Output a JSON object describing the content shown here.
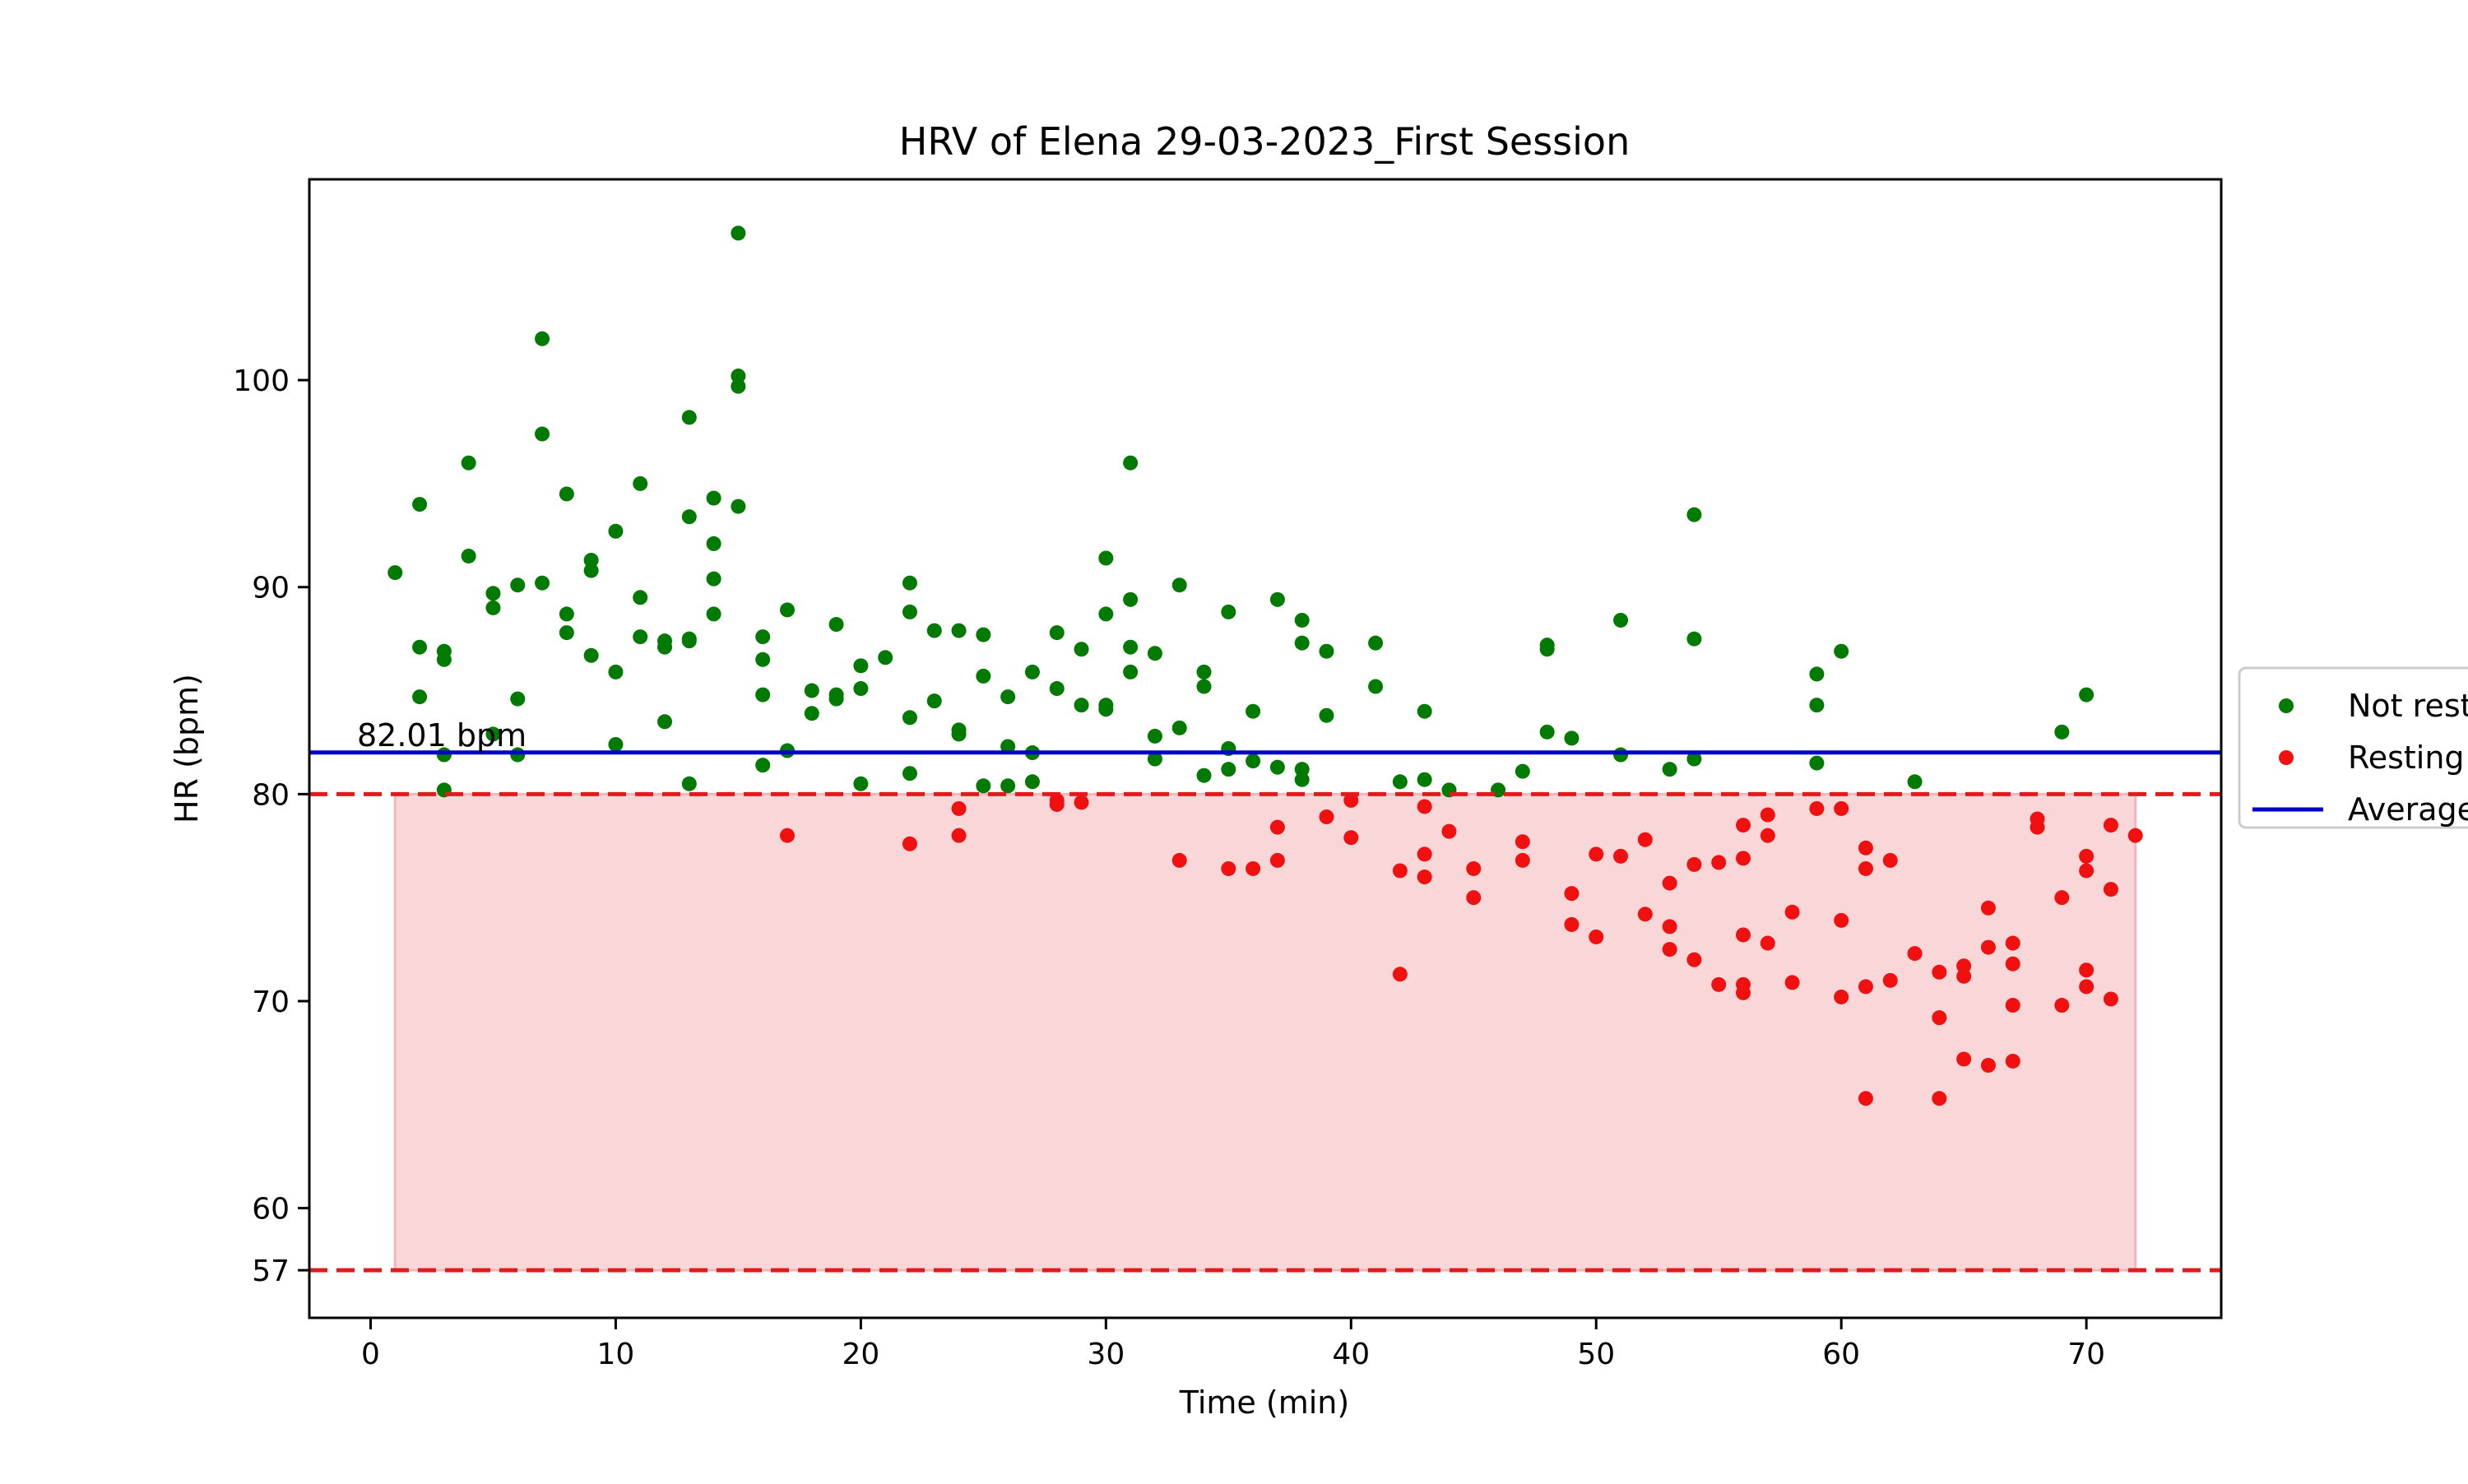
{
  "chart_data": {
    "type": "scatter",
    "title": "HRV of Elena 29-03-2023_First Session",
    "xlabel": "Time (min)",
    "ylabel": "HR (bpm)",
    "xlim": [
      -2.5,
      75.5
    ],
    "ylim": [
      54.7,
      109.7
    ],
    "x_ticks": [
      0,
      10,
      20,
      30,
      40,
      50,
      60,
      70
    ],
    "y_ticks": [
      57,
      60,
      70,
      80,
      90,
      100
    ],
    "grid": false,
    "legend_position": "right",
    "average": {
      "value": 82.01,
      "label": "82.01 bpm",
      "color": "#0000cc"
    },
    "thresholds": [
      {
        "value": 80,
        "color": "#e31a1c"
      },
      {
        "value": 57,
        "color": "#e31a1c"
      }
    ],
    "resting_band": {
      "x_start": 1,
      "x_end": 72,
      "y_low": 57,
      "y_high": 80,
      "color": "#f4b6b8"
    },
    "series": [
      {
        "name": "Not resting",
        "color": "#007a00",
        "points": [
          [
            1,
            90.7
          ],
          [
            2,
            94.0
          ],
          [
            2,
            87.1
          ],
          [
            2,
            84.7
          ],
          [
            3,
            86.9
          ],
          [
            3,
            86.5
          ],
          [
            3,
            81.9
          ],
          [
            3,
            80.2
          ],
          [
            4,
            96.0
          ],
          [
            4,
            91.5
          ],
          [
            5,
            89.7
          ],
          [
            5,
            89.0
          ],
          [
            5,
            82.9
          ],
          [
            6,
            90.1
          ],
          [
            6,
            84.6
          ],
          [
            6,
            81.9
          ],
          [
            7,
            102.0
          ],
          [
            7,
            97.4
          ],
          [
            7,
            90.2
          ],
          [
            8,
            94.5
          ],
          [
            8,
            88.7
          ],
          [
            8,
            87.8
          ],
          [
            9,
            91.3
          ],
          [
            9,
            90.8
          ],
          [
            9,
            86.7
          ],
          [
            10,
            92.7
          ],
          [
            10,
            85.9
          ],
          [
            10,
            82.4
          ],
          [
            11,
            95.0
          ],
          [
            11,
            89.5
          ],
          [
            11,
            87.6
          ],
          [
            12,
            87.4
          ],
          [
            12,
            87.1
          ],
          [
            12,
            83.5
          ],
          [
            13,
            98.2
          ],
          [
            13,
            93.4
          ],
          [
            13,
            87.5
          ],
          [
            13,
            87.4
          ],
          [
            13,
            80.5
          ],
          [
            14,
            94.3
          ],
          [
            14,
            92.1
          ],
          [
            14,
            90.4
          ],
          [
            14,
            88.7
          ],
          [
            15,
            107.1
          ],
          [
            15,
            100.2
          ],
          [
            15,
            99.7
          ],
          [
            15,
            93.9
          ],
          [
            16,
            87.6
          ],
          [
            16,
            86.5
          ],
          [
            16,
            84.8
          ],
          [
            16,
            81.4
          ],
          [
            17,
            88.9
          ],
          [
            17,
            82.1
          ],
          [
            18,
            85.0
          ],
          [
            18,
            83.9
          ],
          [
            19,
            88.2
          ],
          [
            19,
            84.8
          ],
          [
            19,
            84.6
          ],
          [
            20,
            86.2
          ],
          [
            20,
            85.1
          ],
          [
            20,
            80.5
          ],
          [
            21,
            86.6
          ],
          [
            22,
            90.2
          ],
          [
            22,
            88.8
          ],
          [
            22,
            83.7
          ],
          [
            22,
            81.0
          ],
          [
            23,
            87.9
          ],
          [
            23,
            84.5
          ],
          [
            24,
            87.9
          ],
          [
            24,
            83.1
          ],
          [
            24,
            82.9
          ],
          [
            25,
            87.7
          ],
          [
            25,
            85.7
          ],
          [
            25,
            80.4
          ],
          [
            26,
            84.7
          ],
          [
            26,
            82.3
          ],
          [
            26,
            80.4
          ],
          [
            27,
            85.9
          ],
          [
            27,
            82.0
          ],
          [
            27,
            80.6
          ],
          [
            28,
            87.8
          ],
          [
            28,
            85.1
          ],
          [
            29,
            87.0
          ],
          [
            29,
            84.3
          ],
          [
            30,
            91.4
          ],
          [
            30,
            88.7
          ],
          [
            30,
            84.3
          ],
          [
            30,
            84.1
          ],
          [
            31,
            96.0
          ],
          [
            31,
            89.4
          ],
          [
            31,
            87.1
          ],
          [
            31,
            85.9
          ],
          [
            32,
            86.8
          ],
          [
            32,
            82.8
          ],
          [
            32,
            81.7
          ],
          [
            33,
            90.1
          ],
          [
            33,
            83.2
          ],
          [
            34,
            85.9
          ],
          [
            34,
            85.2
          ],
          [
            34,
            80.9
          ],
          [
            35,
            88.8
          ],
          [
            35,
            82.2
          ],
          [
            35,
            81.2
          ],
          [
            36,
            84.0
          ],
          [
            36,
            81.6
          ],
          [
            37,
            89.4
          ],
          [
            37,
            81.3
          ],
          [
            38,
            88.4
          ],
          [
            38,
            87.3
          ],
          [
            38,
            81.2
          ],
          [
            38,
            80.7
          ],
          [
            39,
            86.9
          ],
          [
            39,
            83.8
          ],
          [
            41,
            87.3
          ],
          [
            41,
            85.2
          ],
          [
            42,
            80.6
          ],
          [
            43,
            84.0
          ],
          [
            43,
            80.7
          ],
          [
            44,
            80.2
          ],
          [
            46,
            80.2
          ],
          [
            47,
            81.1
          ],
          [
            48,
            87.2
          ],
          [
            48,
            87.0
          ],
          [
            48,
            83.0
          ],
          [
            49,
            82.7
          ],
          [
            51,
            88.4
          ],
          [
            51,
            81.9
          ],
          [
            53,
            81.2
          ],
          [
            54,
            93.5
          ],
          [
            54,
            87.5
          ],
          [
            54,
            81.7
          ],
          [
            59,
            85.8
          ],
          [
            59,
            84.3
          ],
          [
            59,
            81.5
          ],
          [
            60,
            86.9
          ],
          [
            63,
            80.6
          ],
          [
            69,
            83.0
          ],
          [
            70,
            84.8
          ]
        ]
      },
      {
        "name": "Resting",
        "color": "#f01010",
        "points": [
          [
            17,
            78.0
          ],
          [
            22,
            77.6
          ],
          [
            24,
            79.3
          ],
          [
            24,
            78.0
          ],
          [
            28,
            79.7
          ],
          [
            28,
            79.5
          ],
          [
            29,
            79.6
          ],
          [
            33,
            76.8
          ],
          [
            35,
            76.4
          ],
          [
            36,
            76.4
          ],
          [
            37,
            78.4
          ],
          [
            37,
            76.8
          ],
          [
            39,
            78.9
          ],
          [
            40,
            79.7
          ],
          [
            40,
            77.9
          ],
          [
            42,
            76.3
          ],
          [
            42,
            71.3
          ],
          [
            43,
            79.4
          ],
          [
            43,
            77.1
          ],
          [
            43,
            76.0
          ],
          [
            44,
            78.2
          ],
          [
            45,
            76.4
          ],
          [
            45,
            75.0
          ],
          [
            47,
            77.7
          ],
          [
            47,
            76.8
          ],
          [
            49,
            75.2
          ],
          [
            49,
            73.7
          ],
          [
            50,
            77.1
          ],
          [
            50,
            73.1
          ],
          [
            51,
            77.0
          ],
          [
            52,
            77.8
          ],
          [
            52,
            74.2
          ],
          [
            53,
            75.7
          ],
          [
            53,
            73.6
          ],
          [
            53,
            72.5
          ],
          [
            54,
            76.6
          ],
          [
            54,
            72.0
          ],
          [
            55,
            76.7
          ],
          [
            55,
            70.8
          ],
          [
            56,
            78.5
          ],
          [
            56,
            76.9
          ],
          [
            56,
            73.2
          ],
          [
            56,
            70.8
          ],
          [
            56,
            70.4
          ],
          [
            57,
            79.0
          ],
          [
            57,
            78.0
          ],
          [
            57,
            72.8
          ],
          [
            58,
            74.3
          ],
          [
            58,
            70.9
          ],
          [
            59,
            79.3
          ],
          [
            60,
            79.3
          ],
          [
            60,
            73.9
          ],
          [
            60,
            70.2
          ],
          [
            61,
            77.4
          ],
          [
            61,
            76.4
          ],
          [
            61,
            70.7
          ],
          [
            61,
            65.3
          ],
          [
            62,
            76.8
          ],
          [
            62,
            71.0
          ],
          [
            63,
            72.3
          ],
          [
            64,
            71.4
          ],
          [
            64,
            69.2
          ],
          [
            64,
            65.3
          ],
          [
            65,
            71.7
          ],
          [
            65,
            71.2
          ],
          [
            65,
            67.2
          ],
          [
            66,
            74.5
          ],
          [
            66,
            72.6
          ],
          [
            66,
            66.9
          ],
          [
            67,
            72.8
          ],
          [
            67,
            71.8
          ],
          [
            67,
            69.8
          ],
          [
            67,
            67.1
          ],
          [
            68,
            78.8
          ],
          [
            68,
            78.4
          ],
          [
            69,
            75.0
          ],
          [
            69,
            69.8
          ],
          [
            70,
            77.0
          ],
          [
            70,
            76.3
          ],
          [
            70,
            71.5
          ],
          [
            70,
            70.7
          ],
          [
            71,
            78.5
          ],
          [
            71,
            75.4
          ],
          [
            71,
            70.1
          ],
          [
            72,
            78.0
          ]
        ]
      }
    ],
    "legend": [
      {
        "label": "Not resting",
        "kind": "dot",
        "color": "#007a00"
      },
      {
        "label": "Resting",
        "kind": "dot",
        "color": "#f01010"
      },
      {
        "label": "Average",
        "kind": "line",
        "color": "#0000cc"
      }
    ]
  }
}
